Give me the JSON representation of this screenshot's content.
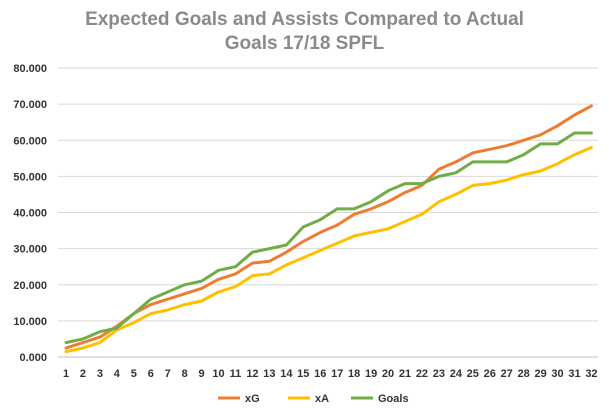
{
  "chart_data": {
    "type": "line",
    "title_lines": [
      "Expected Goals and Assists Compared to Actual",
      "Goals 17/18 SPFL"
    ],
    "xlabel": "",
    "ylabel": "",
    "x": [
      1,
      2,
      3,
      4,
      5,
      6,
      7,
      8,
      9,
      10,
      11,
      12,
      13,
      14,
      15,
      16,
      17,
      18,
      19,
      20,
      21,
      22,
      23,
      24,
      25,
      26,
      27,
      28,
      29,
      30,
      31,
      32
    ],
    "ylim": [
      0,
      80
    ],
    "yticks": [
      0,
      10,
      20,
      30,
      40,
      50,
      60,
      70,
      80
    ],
    "ytick_labels": [
      "0.000",
      "10.000",
      "20.000",
      "30.000",
      "40.000",
      "50.000",
      "60.000",
      "70.000",
      "80.000"
    ],
    "grid": true,
    "legend_position": "bottom",
    "series": [
      {
        "name": "xG",
        "color": "#ED7D31",
        "values": [
          2.5,
          4,
          5.5,
          8.5,
          12,
          14.5,
          16,
          17.5,
          19,
          21.5,
          23,
          26,
          26.5,
          29,
          32,
          34.5,
          36.5,
          39.5,
          41,
          43,
          45.5,
          47.5,
          52,
          54,
          56.5,
          57.5,
          58.5,
          60,
          61.5,
          64,
          67,
          69.5
        ]
      },
      {
        "name": "xA",
        "color": "#FFC000",
        "values": [
          1.5,
          2.5,
          4,
          7.5,
          9.5,
          12,
          13,
          14.5,
          15.5,
          18,
          19.5,
          22.5,
          23,
          25.5,
          27.5,
          29.5,
          31.5,
          33.5,
          34.5,
          35.5,
          37.5,
          39.5,
          43,
          45,
          47.5,
          48,
          49,
          50.5,
          51.5,
          53.5,
          56,
          58
        ]
      },
      {
        "name": "Goals",
        "color": "#70AD47",
        "values": [
          4,
          5,
          7,
          8,
          12,
          16,
          18,
          20,
          21,
          24,
          25,
          29,
          30,
          31,
          36,
          38,
          41,
          41,
          43,
          46,
          48,
          48,
          50,
          51,
          54,
          54,
          54,
          56,
          59,
          59,
          62,
          62
        ]
      }
    ]
  }
}
